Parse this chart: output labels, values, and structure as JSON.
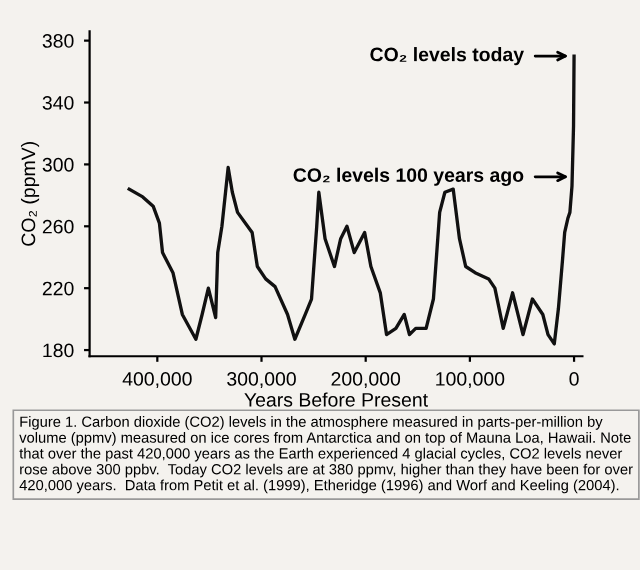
{
  "chart_data": {
    "type": "line",
    "xlabel": "Years Before Present",
    "ylabel": "CO₂ (ppmV)",
    "x": [
      427000,
      414000,
      404000,
      398000,
      395000,
      385000,
      376000,
      363000,
      357000,
      351000,
      344000,
      342000,
      338000,
      332000,
      328000,
      323000,
      309000,
      304000,
      296000,
      287000,
      275000,
      268000,
      258000,
      252000,
      247000,
      245000,
      239000,
      230000,
      224000,
      218000,
      211000,
      201000,
      195000,
      186000,
      180000,
      171000,
      163000,
      158000,
      152000,
      142000,
      135000,
      129000,
      124000,
      116000,
      110000,
      104000,
      95000,
      82000,
      76000,
      68000,
      59000,
      49000,
      40000,
      30000,
      25000,
      19000,
      15000,
      11000,
      9000,
      6000,
      4000,
      2000,
      500,
      0
    ],
    "series": [
      {
        "color": "#111111",
        "values": [
          284,
          279,
          273,
          262,
          243,
          230,
          203,
          187,
          203,
          220,
          201,
          243,
          260,
          298,
          282,
          269,
          256,
          234,
          226,
          221,
          203,
          187,
          203,
          213,
          260,
          282,
          252,
          234,
          252,
          260,
          243,
          256,
          234,
          217,
          190,
          194,
          203,
          190,
          194,
          194,
          213,
          269,
          282,
          284,
          252,
          234,
          230,
          226,
          220,
          194,
          217,
          190,
          213,
          203,
          190,
          184,
          207,
          239,
          256,
          265,
          269,
          286,
          325,
          370
        ]
      }
    ],
    "xlim": [
      465000,
      -8000
    ],
    "ylim": [
      176,
      386
    ],
    "xticks": [
      {
        "value": 400000,
        "label": "400,000"
      },
      {
        "value": 300000,
        "label": "300,000"
      },
      {
        "value": 200000,
        "label": "200,000"
      },
      {
        "value": 100000,
        "label": "100,000"
      },
      0
    ],
    "yticks": [
      180,
      220,
      260,
      300,
      340,
      380
    ],
    "grid": false,
    "annotations": [
      {
        "text": "CO₂ levels today",
        "x": 0,
        "y": 370
      },
      {
        "text": "CO₂ levels 100 years ago",
        "x": 0,
        "y": 292
      },
      "Figure 1. Carbon dioxide (CO2) levels in the atmosphere measured in parts-per-million by volume (ppmv) measured on ice cores from Antarctica and on top of Mauna Loa, Hawaii. Note that over the past 420,000 years as the Earth experienced 4 glacial cycles, CO2 levels never rose above 300 ppbv.  Today CO2 levels are at 380 ppmv, higher than they have been for over 420,000 years.  Data from Petit et al. (1999), Etheridge (1996) and Worf and Keeling (2004)."
    ]
  }
}
